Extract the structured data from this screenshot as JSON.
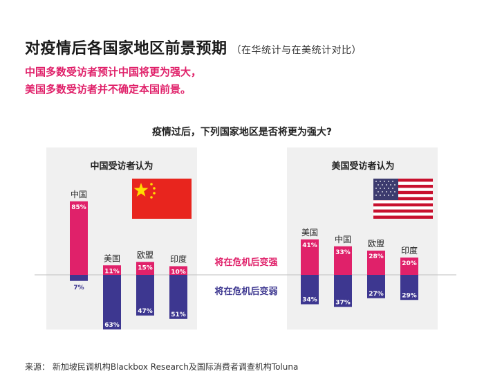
{
  "header": {
    "title": "对疫情后各国家地区前景预期",
    "subtitle": "（在华统计与在美统计对比）",
    "key_lines": [
      "中国多数受访者预计中国将更为强大，",
      "美国多数受访者并不确定本国前景。"
    ]
  },
  "question": "疫情过后，下列国家地区是否将更为强大?",
  "colors": {
    "stronger": "#e0216a",
    "weaker": "#3d3790",
    "panel_bg": "#f0f0f0",
    "baseline": "#bfbfbf"
  },
  "chart_data": {
    "type": "bar",
    "diverging": true,
    "series_labels": {
      "stronger": "将在危机后变强",
      "weaker": "将在危机后变弱"
    },
    "panels": [
      {
        "title": "中国受访者认为",
        "flag": "china-flag",
        "categories": [
          "中国",
          "美国",
          "欧盟",
          "印度"
        ],
        "stronger": [
          85,
          11,
          15,
          10
        ],
        "weaker": [
          7,
          63,
          47,
          51
        ],
        "stronger_labels": [
          "85%",
          "11%",
          "15%",
          "10%"
        ],
        "weaker_labels": [
          "7%",
          "63%",
          "47%",
          "51%"
        ]
      },
      {
        "title": "美国受访者认为",
        "flag": "usa-flag",
        "categories": [
          "美国",
          "中国",
          "欧盟",
          "印度"
        ],
        "stronger": [
          41,
          33,
          28,
          20
        ],
        "weaker": [
          34,
          37,
          27,
          29
        ],
        "stronger_labels": [
          "41%",
          "33%",
          "28%",
          "20%"
        ],
        "weaker_labels": [
          "34%",
          "37%",
          "27%",
          "29%"
        ]
      }
    ]
  },
  "source": "来源：  新加坡民调机构Blackbox Research及国际消费者调查机构Toluna"
}
